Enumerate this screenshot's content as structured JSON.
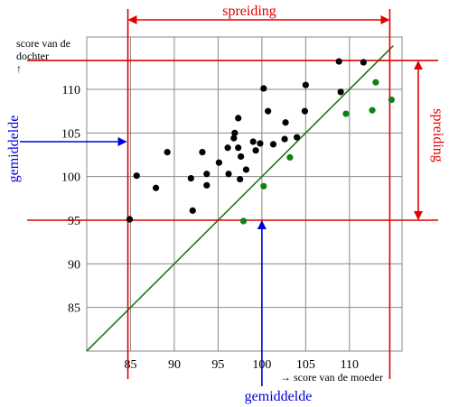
{
  "chart_data": {
    "type": "scatter",
    "title": "",
    "xlabel": "→ score van de moeder",
    "ylabel_line1": "score van de",
    "ylabel_line2": "dochter",
    "ylabel_arrow": "↑",
    "xlim": [
      80,
      116
    ],
    "ylim": [
      80,
      116
    ],
    "x_ticks": [
      85,
      90,
      95,
      100,
      105,
      110
    ],
    "y_ticks": [
      85,
      90,
      95,
      100,
      105,
      110
    ],
    "x_tick_labels": [
      "85",
      "90",
      "95",
      "100",
      "105",
      "110"
    ],
    "y_tick_labels": [
      "85",
      "90",
      "95",
      "100",
      "105",
      "110"
    ],
    "grid": true,
    "diagonal": {
      "from": [
        80,
        80
      ],
      "to": [
        115,
        115
      ],
      "color": "#1a7a1a"
    },
    "series": [
      {
        "color": "#000000",
        "points": [
          [
            84.9,
            95.1
          ],
          [
            85.7,
            100.1
          ],
          [
            87.9,
            98.7
          ],
          [
            89.2,
            102.8
          ],
          [
            91.9,
            99.8
          ],
          [
            92.1,
            96.1
          ],
          [
            93.2,
            102.8
          ],
          [
            93.7,
            100.3
          ],
          [
            93.7,
            99.0
          ],
          [
            95.1,
            101.6
          ],
          [
            96.1,
            103.3
          ],
          [
            96.2,
            100.3
          ],
          [
            96.8,
            104.4
          ],
          [
            96.9,
            105.0
          ],
          [
            97.3,
            106.7
          ],
          [
            97.3,
            103.3
          ],
          [
            97.5,
            99.7
          ],
          [
            97.6,
            102.3
          ],
          [
            98.2,
            100.8
          ],
          [
            99.0,
            104.0
          ],
          [
            99.3,
            103.0
          ],
          [
            99.8,
            103.8
          ],
          [
            100.2,
            110.1
          ],
          [
            100.7,
            107.5
          ],
          [
            101.3,
            103.7
          ],
          [
            102.7,
            106.2
          ],
          [
            102.6,
            104.3
          ],
          [
            104.0,
            104.5
          ],
          [
            104.9,
            107.5
          ],
          [
            105.0,
            110.5
          ],
          [
            108.8,
            113.2
          ],
          [
            109.0,
            109.7
          ],
          [
            111.6,
            113.1
          ]
        ]
      },
      {
        "color": "#128012",
        "points": [
          [
            97.9,
            94.9
          ],
          [
            100.2,
            98.9
          ],
          [
            103.2,
            102.2
          ],
          [
            109.6,
            107.2
          ],
          [
            112.6,
            107.6
          ],
          [
            113.0,
            110.8
          ],
          [
            114.8,
            108.8
          ]
        ]
      }
    ],
    "reference_lines": {
      "color": "#e00000",
      "horizontal": [
        95,
        113.3
      ],
      "vertical": [
        84.7,
        114.6
      ]
    },
    "annotations": {
      "spreiding_top": "spreiding",
      "spreiding_right": "spreiding",
      "gemiddelde_left": "gemiddelde",
      "gemiddelde_bottom": "gemiddelde",
      "mean_x": 100,
      "mean_y": 104,
      "annotation_red": "#e00000",
      "annotation_blue": "#0000dd"
    }
  }
}
